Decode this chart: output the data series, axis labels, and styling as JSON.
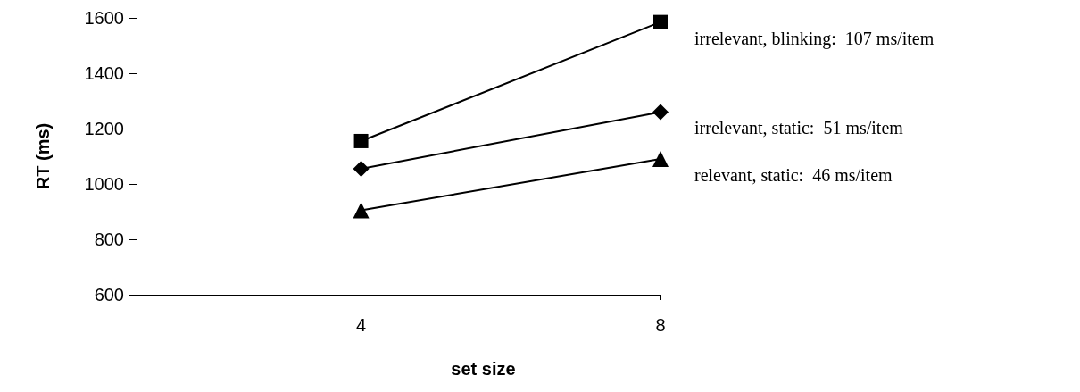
{
  "chart_data": {
    "type": "line",
    "xlabel": "set size",
    "ylabel": "RT (ms)",
    "x": [
      4,
      8
    ],
    "xlim": [
      1,
      8
    ],
    "xticks": [
      {
        "value": 1,
        "label": null
      },
      4,
      {
        "value": 6,
        "label": null
      },
      8
    ],
    "ylim": [
      600,
      1600
    ],
    "yticks": [
      600,
      800,
      1000,
      1200,
      1400,
      1600
    ],
    "grid": false,
    "legend": false,
    "line_style": "solid",
    "series": [
      {
        "name": "irrelevant, blinking:  107 ms/item",
        "color": "#000000",
        "marker": "square",
        "values": [
          1155,
          1585
        ]
      },
      {
        "name": "irrelevant, static:  51 ms/item",
        "color": "#000000",
        "marker": "diamond",
        "values": [
          1055,
          1260
        ]
      },
      {
        "name": "relevant, static:  46 ms/item",
        "color": "#000000",
        "marker": "triangle",
        "values": [
          905,
          1090
        ]
      }
    ]
  }
}
